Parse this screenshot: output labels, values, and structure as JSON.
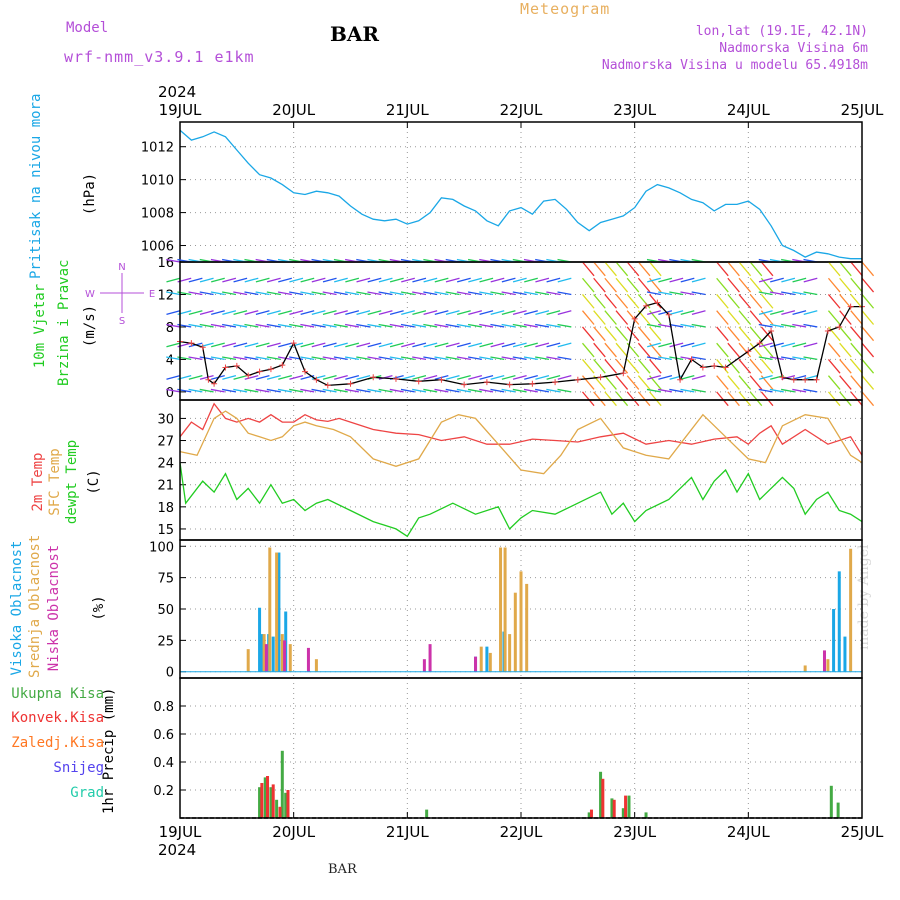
{
  "header": {
    "model_label": "Model",
    "model_version": "wrf-nmm_v3.9.1 e1km",
    "station": "BAR",
    "meteogram": "Meteogram",
    "location": "lon,lat (19.1E, 42.1N)",
    "elevation": "Nadmorska Visina 6m",
    "model_elevation": "Nadmorska Visina u modelu 65.4918m"
  },
  "footer": {
    "station": "BAR",
    "made_by": "made by Angel"
  },
  "colors": {
    "pressure": "#1aa7e6",
    "temp2m": "#ee4444",
    "sfc": "#e0a94a",
    "dewpt": "#22cc22",
    "high_cloud": "#1aa7e6",
    "mid_cloud": "#e0a94a",
    "low_cloud": "#cc33aa",
    "total_precip": "#44aa44",
    "conv_precip": "#ee3333",
    "frozen": "#ff7722",
    "snow": "#5544ee",
    "hail": "#22ccaa",
    "wind_speed": "#000000",
    "wind_purple": "#9933dd"
  },
  "chart_data": [
    {
      "type": "line",
      "panel": "pressure",
      "ylabel_lines": [
        "Pritisak na nivou mora",
        "(hPa)"
      ],
      "year": "2024",
      "x_ticks": [
        "19JUL",
        "20JUL",
        "21JUL",
        "22JUL",
        "23JUL",
        "24JUL",
        "25JUL"
      ],
      "ylim": [
        1005,
        1013.5
      ],
      "yticks": [
        1006,
        1008,
        1010,
        1012
      ],
      "series": [
        {
          "key": "pressure",
          "x": [
            0,
            0.1,
            0.2,
            0.3,
            0.4,
            0.5,
            0.6,
            0.7,
            0.8,
            0.9,
            1.0,
            1.1,
            1.2,
            1.3,
            1.4,
            1.5,
            1.6,
            1.7,
            1.8,
            1.9,
            2.0,
            2.1,
            2.2,
            2.3,
            2.4,
            2.5,
            2.6,
            2.7,
            2.8,
            2.9,
            3.0,
            3.1,
            3.2,
            3.3,
            3.4,
            3.5,
            3.6,
            3.7,
            3.8,
            3.9,
            4.0,
            4.1,
            4.2,
            4.3,
            4.4,
            4.5,
            4.6,
            4.7,
            4.8,
            4.9,
            5.0,
            5.1,
            5.2,
            5.3,
            5.4,
            5.5,
            5.6,
            5.7,
            5.8,
            5.9,
            6.0
          ],
          "y": [
            1013.0,
            1012.4,
            1012.6,
            1012.9,
            1012.6,
            1011.8,
            1011.0,
            1010.3,
            1010.1,
            1009.7,
            1009.2,
            1009.1,
            1009.3,
            1009.2,
            1009.0,
            1008.4,
            1007.9,
            1007.6,
            1007.5,
            1007.6,
            1007.3,
            1007.5,
            1008.0,
            1008.9,
            1008.8,
            1008.4,
            1008.1,
            1007.5,
            1007.2,
            1008.1,
            1008.3,
            1007.9,
            1008.7,
            1008.8,
            1008.2,
            1007.4,
            1006.9,
            1007.4,
            1007.6,
            1007.8,
            1008.3,
            1009.3,
            1009.7,
            1009.5,
            1009.2,
            1008.8,
            1008.6,
            1008.1,
            1008.5,
            1008.5,
            1008.7,
            1008.2,
            1007.2,
            1006.0,
            1005.7,
            1005.3,
            1005.6,
            1005.5,
            1005.3,
            1005.2,
            1005.2
          ]
        }
      ]
    },
    {
      "type": "line",
      "panel": "wind",
      "ylabel_lines": [
        "10m Vjetar",
        "Brzina i Pravac",
        "(m/s)"
      ],
      "compass": [
        "N",
        "E",
        "S",
        "W"
      ],
      "ylim": [
        -1,
        16
      ],
      "yticks": [
        0,
        4,
        8,
        12,
        16
      ],
      "series": [
        {
          "key": "wind_speed",
          "x": [
            0,
            0.1,
            0.2,
            0.25,
            0.3,
            0.4,
            0.5,
            0.6,
            0.7,
            0.8,
            0.9,
            1.0,
            1.1,
            1.2,
            1.3,
            1.5,
            1.7,
            1.9,
            2.1,
            2.3,
            2.5,
            2.7,
            2.9,
            3.1,
            3.3,
            3.5,
            3.7,
            3.9,
            4.0,
            4.1,
            4.2,
            4.3,
            4.4,
            4.5,
            4.6,
            4.7,
            4.8,
            5.0,
            5.1,
            5.2,
            5.3,
            5.4,
            5.5,
            5.6,
            5.7,
            5.8,
            5.9,
            6.0
          ],
          "y": [
            6.2,
            6.0,
            5.5,
            1.5,
            1.0,
            3.0,
            3.2,
            2.0,
            2.5,
            2.8,
            3.3,
            6.0,
            2.5,
            1.5,
            0.8,
            1.0,
            1.8,
            1.6,
            1.3,
            1.5,
            0.9,
            1.2,
            0.9,
            1.0,
            1.2,
            1.5,
            1.8,
            2.3,
            9.0,
            10.6,
            11.0,
            9.5,
            1.5,
            4.0,
            3.0,
            3.2,
            3.0,
            5.0,
            6.0,
            7.5,
            1.8,
            1.5,
            1.5,
            1.5,
            7.5,
            8.0,
            10.5,
            10.5
          ]
        }
      ],
      "arrow_rows": [
        0,
        2,
        4,
        6,
        8,
        10,
        12,
        14,
        16
      ]
    },
    {
      "type": "line",
      "panel": "temperature",
      "ylabel_lines": [
        "2m Temp",
        "SFC Temp",
        "dewpt Temp",
        "(C)"
      ],
      "ylim": [
        13.5,
        32.5
      ],
      "yticks": [
        15,
        18,
        21,
        24,
        27,
        30
      ],
      "series": [
        {
          "key": "temp2m",
          "x": [
            0,
            0.1,
            0.2,
            0.3,
            0.4,
            0.5,
            0.6,
            0.7,
            0.8,
            0.9,
            1.0,
            1.1,
            1.2,
            1.3,
            1.4,
            1.5,
            1.7,
            1.9,
            2.1,
            2.3,
            2.5,
            2.7,
            2.9,
            3.1,
            3.3,
            3.5,
            3.7,
            3.9,
            4.1,
            4.3,
            4.5,
            4.7,
            4.9,
            5.0,
            5.1,
            5.2,
            5.3,
            5.5,
            5.7,
            5.9,
            6.0
          ],
          "y": [
            27.5,
            29.5,
            28.5,
            32.0,
            30.0,
            29.5,
            30.0,
            29.5,
            30.5,
            29.5,
            29.5,
            30.5,
            29.8,
            29.6,
            30.0,
            29.5,
            28.5,
            28.0,
            27.8,
            27.0,
            27.5,
            26.5,
            26.5,
            27.2,
            27.0,
            26.8,
            27.5,
            28.0,
            26.5,
            27.0,
            26.5,
            27.2,
            27.5,
            26.5,
            28.0,
            29.0,
            26.5,
            28.5,
            26.5,
            27.5,
            25.0
          ]
        },
        {
          "key": "sfc",
          "x": [
            0,
            0.15,
            0.3,
            0.4,
            0.5,
            0.6,
            0.7,
            0.8,
            0.9,
            1.0,
            1.1,
            1.2,
            1.35,
            1.5,
            1.7,
            1.9,
            2.1,
            2.3,
            2.45,
            2.6,
            2.8,
            3.0,
            3.2,
            3.35,
            3.5,
            3.7,
            3.9,
            4.1,
            4.3,
            4.45,
            4.6,
            4.8,
            5.0,
            5.15,
            5.3,
            5.5,
            5.7,
            5.9,
            6.0
          ],
          "y": [
            25.5,
            25.0,
            30.0,
            31.0,
            30.0,
            28.0,
            27.5,
            27.0,
            27.5,
            29.0,
            29.5,
            29.0,
            28.5,
            27.5,
            24.5,
            23.5,
            24.5,
            29.5,
            30.5,
            30.0,
            26.5,
            23.0,
            22.5,
            25.0,
            28.5,
            30.0,
            26.0,
            25.0,
            24.5,
            27.5,
            30.5,
            27.5,
            24.5,
            24.0,
            29.0,
            30.5,
            30.0,
            25.0,
            24.0
          ]
        },
        {
          "key": "dewpt",
          "x": [
            0,
            0.05,
            0.1,
            0.2,
            0.3,
            0.4,
            0.5,
            0.6,
            0.7,
            0.8,
            0.9,
            1.0,
            1.1,
            1.2,
            1.3,
            1.5,
            1.7,
            1.9,
            2.0,
            2.1,
            2.2,
            2.4,
            2.6,
            2.8,
            2.9,
            3.0,
            3.1,
            3.3,
            3.5,
            3.7,
            3.8,
            3.9,
            4.0,
            4.1,
            4.3,
            4.5,
            4.6,
            4.7,
            4.8,
            4.9,
            5.0,
            5.1,
            5.3,
            5.4,
            5.5,
            5.6,
            5.7,
            5.8,
            5.9,
            6.0
          ],
          "y": [
            24.0,
            18.5,
            19.5,
            21.5,
            20.0,
            22.5,
            19.0,
            20.5,
            18.5,
            21.0,
            18.5,
            19.0,
            17.5,
            18.5,
            19.0,
            17.5,
            16.0,
            15.0,
            14.0,
            16.5,
            17.0,
            18.5,
            17.0,
            18.0,
            15.0,
            16.5,
            17.5,
            17.0,
            18.5,
            20.0,
            17.0,
            18.5,
            16.0,
            17.5,
            19.0,
            22.0,
            19.0,
            21.5,
            23.0,
            20.0,
            22.5,
            19.0,
            22.0,
            20.5,
            17.0,
            19.0,
            20.0,
            17.5,
            17.0,
            16.0
          ]
        }
      ]
    },
    {
      "type": "bar",
      "panel": "clouds",
      "ylabel_lines": [
        "Visoka Oblacnost",
        "Srednja Oblacnost",
        "Niska Oblacnost",
        "(%)"
      ],
      "ylim": [
        -5,
        105
      ],
      "yticks": [
        0,
        25,
        50,
        75,
        100
      ],
      "series": [
        {
          "key": "high_cloud",
          "x": [
            0.7,
            0.72,
            0.78,
            0.82,
            0.87,
            0.93,
            2.6,
            2.7,
            2.85,
            5.75,
            5.8,
            5.85
          ],
          "y": [
            51,
            30,
            30,
            28,
            95,
            48,
            12,
            20,
            32,
            50,
            80,
            28
          ]
        },
        {
          "key": "mid_cloud",
          "x": [
            0.6,
            0.74,
            0.79,
            0.85,
            0.9,
            0.97,
            1.2,
            2.65,
            2.73,
            2.82,
            2.86,
            2.9,
            2.95,
            3.0,
            3.05,
            5.5,
            5.7,
            5.9
          ],
          "y": [
            18,
            30,
            99,
            95,
            30,
            22,
            10,
            20,
            15,
            99,
            99,
            30,
            63,
            80,
            70,
            5,
            10,
            98
          ]
        },
        {
          "key": "low_cloud",
          "x": [
            0.76,
            0.92,
            1.13,
            2.15,
            2.2,
            2.6,
            5.67
          ],
          "y": [
            22,
            25,
            19,
            10,
            22,
            12,
            17
          ]
        }
      ]
    },
    {
      "type": "bar",
      "panel": "precip",
      "ylabel_lines": [
        "1hr Precip (mm)"
      ],
      "legend": [
        "Ukupna Kisa",
        "Konvek.Kisa",
        "Zaledj.Kisa",
        "Snijeg",
        "Grad"
      ],
      "ylim": [
        0,
        1.0
      ],
      "yticks": [
        0.2,
        0.4,
        0.6,
        0.8
      ],
      "series": [
        {
          "key": "total_precip",
          "x": [
            0.7,
            0.75,
            0.8,
            0.85,
            0.9,
            0.93,
            2.17,
            3.6,
            3.7,
            3.8,
            3.9,
            3.95,
            4.1,
            5.73,
            5.79
          ],
          "y": [
            0.22,
            0.29,
            0.22,
            0.13,
            0.48,
            0.18,
            0.06,
            0.04,
            0.33,
            0.14,
            0.07,
            0.16,
            0.04,
            0.23,
            0.11
          ]
        },
        {
          "key": "conv_precip",
          "x": [
            0.72,
            0.77,
            0.82,
            0.88,
            0.95,
            3.62,
            3.72,
            3.82,
            3.92
          ],
          "y": [
            0.25,
            0.3,
            0.24,
            0.08,
            0.2,
            0.06,
            0.28,
            0.13,
            0.16
          ]
        }
      ]
    }
  ]
}
